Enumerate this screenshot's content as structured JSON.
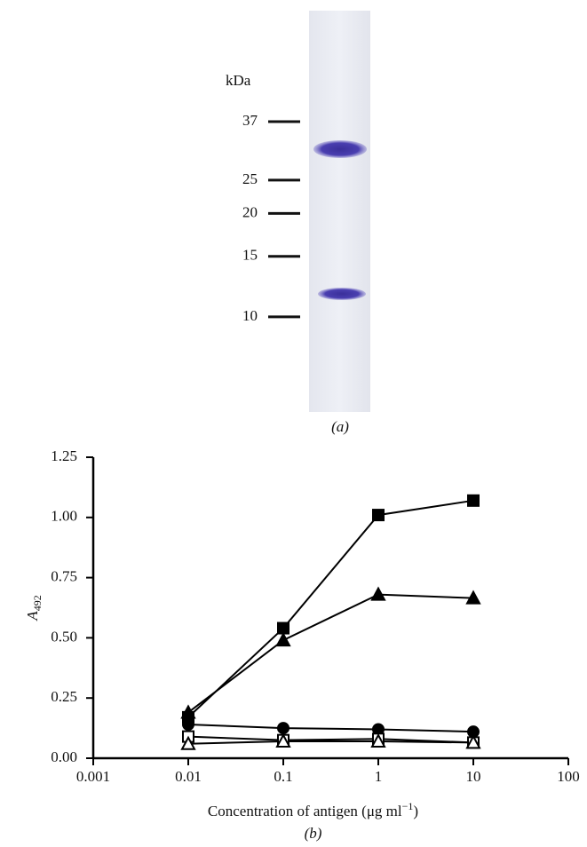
{
  "gel": {
    "unit_label": "kDa",
    "markers": [
      37,
      25,
      20,
      15,
      10
    ],
    "caption": "(a)"
  },
  "chart_data": {
    "type": "line",
    "caption": "(b)",
    "x_label": "Concentration of antigen (μg ml−1)",
    "y_label": "A492",
    "x_scale": "log",
    "xlim": [
      0.001,
      100
    ],
    "xticks": [
      0.001,
      0.01,
      0.1,
      1,
      10,
      100
    ],
    "ylim": [
      0,
      1.25
    ],
    "yticks": [
      {
        "value": 0,
        "label": "0.00"
      },
      0.25,
      {
        "value": 0.5,
        "label": "0.50"
      },
      0.75,
      {
        "value": 1,
        "label": "1.00"
      },
      1.25
    ],
    "grid": false,
    "x": [
      0.01,
      0.1,
      1,
      10
    ],
    "series": [
      {
        "color": "#000000",
        "marker": "square",
        "marker_fill": "filled",
        "values": [
          0.17,
          0.54,
          1.01,
          1.07
        ]
      },
      {
        "color": "#000000",
        "marker": "triangle",
        "marker_fill": "filled",
        "values": [
          0.19,
          0.49,
          0.68,
          0.665
        ]
      },
      {
        "color": "#000000",
        "marker": "circle",
        "marker_fill": "filled",
        "values": [
          0.14,
          0.125,
          0.12,
          0.11
        ]
      },
      {
        "color": "#000000",
        "marker": "square",
        "marker_fill": "open",
        "values": [
          0.09,
          0.075,
          0.08,
          0.065
        ]
      },
      {
        "color": "#000000",
        "marker": "triangle",
        "marker_fill": "open",
        "values": [
          0.06,
          0.07,
          0.07,
          0.065
        ]
      }
    ]
  }
}
